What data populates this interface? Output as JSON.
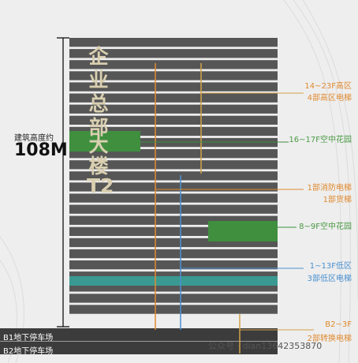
{
  "tower": {
    "name_chars": [
      "企",
      "业",
      "总",
      "部",
      "大",
      "楼",
      "T2"
    ]
  },
  "height": {
    "caption": "建筑高度约",
    "value": "108M"
  },
  "zones": {
    "high": {
      "range": "14~23F高区",
      "elevators": "4部高区电梯"
    },
    "garden_upper": "16~17F空中花园",
    "fire": {
      "line1": "1部消防电梯",
      "line2": "1部货梯"
    },
    "garden_lower": "8~9F空中花园",
    "low": {
      "range": "1~13F低区",
      "elevators": "3部低区电梯"
    },
    "basement_link": {
      "range": "B2~3F",
      "elevators": "2部转换电梯"
    }
  },
  "basement": {
    "b1": "B1地下停车场",
    "b2": "B2地下停车场"
  },
  "watermark": "公众号 · dian13642353870",
  "colors": {
    "floor": "#565656",
    "basement": "#3c3c3c",
    "garden": "#3f8f3f",
    "lobby_band": "#3a9a92",
    "shaft_orange": "#e08a30",
    "shaft_gold": "#d2a24a",
    "shaft_blue": "#4a90d0"
  }
}
